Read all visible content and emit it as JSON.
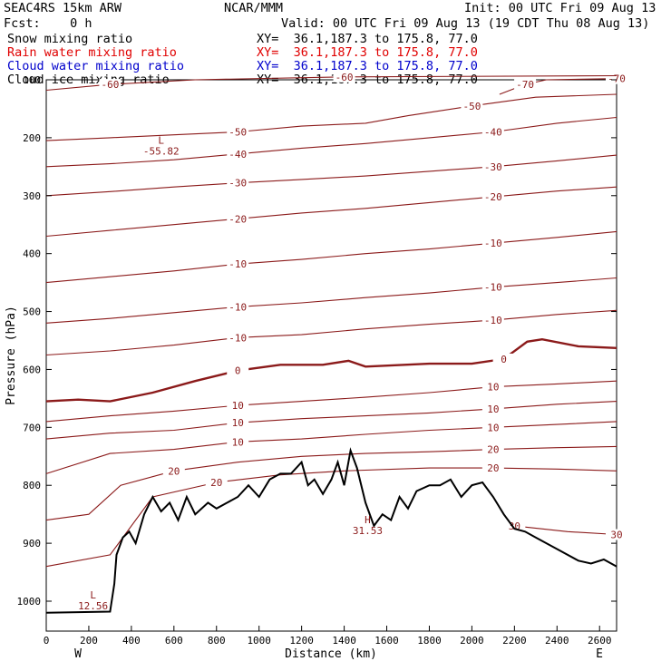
{
  "header": {
    "model": "SEAC4RS 15km ARW",
    "org": "NCAR/MMM",
    "init": "Init: 00 UTC Fri 09 Aug 13",
    "fcst": "Fcst:    0 h",
    "valid": "Valid: 00 UTC Fri 09 Aug 13 (19 CDT Thu 08 Aug 13)",
    "fields": [
      {
        "name": "Snow mixing ratio",
        "xy": "XY=  36.1,187.3 to 175.8, 77.0",
        "color": "#000000"
      },
      {
        "name": "Rain water mixing ratio",
        "xy": "XY=  36.1,187.3 to 175.8, 77.0",
        "color": "#e00000"
      },
      {
        "name": "Cloud water mixing ratio",
        "xy": "XY=  36.1,187.3 to 175.8, 77.0",
        "color": "#0000cc"
      },
      {
        "name": "Cloud ice mixing ratio",
        "xy": "XY=  36.1,187.3 to 175.8, 77.0",
        "color": "#000000"
      }
    ]
  },
  "chart_data": {
    "type": "line",
    "xlabel": "Distance (km)",
    "ylabel": "Pressure (hPa)",
    "xlim": [
      0,
      2680
    ],
    "ylim": [
      1050,
      100
    ],
    "x_ticks": [
      0,
      200,
      400,
      600,
      800,
      1000,
      1200,
      1400,
      1600,
      1800,
      2000,
      2200,
      2400,
      2600
    ],
    "y_ticks": [
      100,
      200,
      300,
      400,
      500,
      600,
      700,
      800,
      900,
      1000
    ],
    "end_labels": {
      "left": "W",
      "right": "E"
    },
    "contour_color": "#8b1a1a",
    "terrain_color": "#000000",
    "temperature_contours": [
      {
        "level": -70,
        "points": [
          [
            2130,
            125
          ],
          [
            2250,
            108
          ],
          [
            2350,
            100
          ],
          [
            2680,
            98
          ]
        ]
      },
      {
        "level": -60,
        "points": [
          [
            0,
            118
          ],
          [
            300,
            108
          ],
          [
            700,
            100
          ],
          [
            1400,
            95
          ],
          [
            2680,
            93
          ]
        ]
      },
      {
        "level": -50,
        "points": [
          [
            0,
            205
          ],
          [
            300,
            200
          ],
          [
            600,
            195
          ],
          [
            900,
            190
          ],
          [
            1200,
            180
          ],
          [
            1500,
            175
          ],
          [
            1700,
            162
          ],
          [
            2000,
            145
          ],
          [
            2300,
            130
          ],
          [
            2680,
            125
          ]
        ]
      },
      {
        "level": -40,
        "points": [
          [
            0,
            250
          ],
          [
            300,
            245
          ],
          [
            600,
            238
          ],
          [
            900,
            228
          ],
          [
            1200,
            218
          ],
          [
            1500,
            210
          ],
          [
            1800,
            200
          ],
          [
            2100,
            190
          ],
          [
            2400,
            175
          ],
          [
            2680,
            165
          ]
        ]
      },
      {
        "level": -30,
        "points": [
          [
            0,
            300
          ],
          [
            300,
            293
          ],
          [
            600,
            285
          ],
          [
            900,
            278
          ],
          [
            1200,
            272
          ],
          [
            1500,
            266
          ],
          [
            1800,
            258
          ],
          [
            2100,
            250
          ],
          [
            2400,
            240
          ],
          [
            2680,
            230
          ]
        ]
      },
      {
        "level": -20,
        "points": [
          [
            0,
            370
          ],
          [
            300,
            360
          ],
          [
            600,
            350
          ],
          [
            900,
            340
          ],
          [
            1200,
            330
          ],
          [
            1500,
            322
          ],
          [
            1800,
            312
          ],
          [
            2100,
            302
          ],
          [
            2400,
            292
          ],
          [
            2680,
            285
          ]
        ]
      },
      {
        "level": -10,
        "points": [
          [
            0,
            450
          ],
          [
            300,
            440
          ],
          [
            600,
            430
          ],
          [
            900,
            418
          ],
          [
            1200,
            410
          ],
          [
            1500,
            400
          ],
          [
            1800,
            392
          ],
          [
            2100,
            382
          ],
          [
            2400,
            372
          ],
          [
            2680,
            362
          ]
        ]
      },
      {
        "level": -10,
        "points": [
          [
            0,
            520
          ],
          [
            300,
            512
          ],
          [
            600,
            502
          ],
          [
            900,
            492
          ],
          [
            1200,
            485
          ],
          [
            1500,
            476
          ],
          [
            1800,
            468
          ],
          [
            2100,
            458
          ],
          [
            2400,
            450
          ],
          [
            2680,
            442
          ]
        ]
      },
      {
        "level": -10,
        "points": [
          [
            0,
            575
          ],
          [
            300,
            568
          ],
          [
            600,
            558
          ],
          [
            900,
            545
          ],
          [
            1200,
            540
          ],
          [
            1500,
            530
          ],
          [
            1800,
            522
          ],
          [
            2100,
            515
          ],
          [
            2400,
            505
          ],
          [
            2680,
            498
          ]
        ]
      },
      {
        "level": 0,
        "points": [
          [
            0,
            655
          ],
          [
            150,
            652
          ],
          [
            300,
            655
          ],
          [
            500,
            640
          ],
          [
            700,
            620
          ],
          [
            900,
            602
          ],
          [
            1100,
            592
          ],
          [
            1300,
            592
          ],
          [
            1420,
            585
          ],
          [
            1500,
            595
          ],
          [
            1800,
            590
          ],
          [
            2000,
            590
          ],
          [
            2150,
            582
          ],
          [
            2260,
            552
          ],
          [
            2330,
            548
          ],
          [
            2500,
            560
          ],
          [
            2680,
            563
          ]
        ]
      },
      {
        "level": 10,
        "points": [
          [
            0,
            690
          ],
          [
            300,
            680
          ],
          [
            600,
            672
          ],
          [
            900,
            662
          ],
          [
            1200,
            655
          ],
          [
            1500,
            648
          ],
          [
            1800,
            640
          ],
          [
            2100,
            630
          ],
          [
            2400,
            625
          ],
          [
            2680,
            620
          ]
        ]
      },
      {
        "level": 10,
        "points": [
          [
            0,
            720
          ],
          [
            300,
            710
          ],
          [
            600,
            705
          ],
          [
            900,
            692
          ],
          [
            1200,
            685
          ],
          [
            1500,
            680
          ],
          [
            1800,
            675
          ],
          [
            2100,
            668
          ],
          [
            2400,
            660
          ],
          [
            2680,
            655
          ]
        ]
      },
      {
        "level": 10,
        "points": [
          [
            0,
            780
          ],
          [
            300,
            745
          ],
          [
            600,
            738
          ],
          [
            900,
            725
          ],
          [
            1200,
            720
          ],
          [
            1500,
            712
          ],
          [
            1800,
            705
          ],
          [
            2100,
            700
          ],
          [
            2400,
            695
          ],
          [
            2680,
            690
          ]
        ]
      },
      {
        "level": 20,
        "points": [
          [
            0,
            860
          ],
          [
            200,
            850
          ],
          [
            350,
            800
          ],
          [
            600,
            775
          ],
          [
            900,
            760
          ],
          [
            1200,
            750
          ],
          [
            1500,
            745
          ],
          [
            1800,
            742
          ],
          [
            2100,
            738
          ],
          [
            2400,
            735
          ],
          [
            2680,
            733
          ]
        ]
      },
      {
        "level": 20,
        "points": [
          [
            0,
            940
          ],
          [
            300,
            920
          ],
          [
            500,
            820
          ],
          [
            800,
            795
          ],
          [
            1100,
            782
          ],
          [
            1400,
            775
          ],
          [
            1800,
            770
          ],
          [
            2100,
            770
          ],
          [
            2400,
            772
          ],
          [
            2680,
            775
          ]
        ]
      },
      {
        "level": 30,
        "points": [
          [
            2200,
            870
          ],
          [
            2450,
            880
          ],
          [
            2680,
            885
          ]
        ]
      }
    ],
    "annotations": [
      {
        "label": "L",
        "value": "-55.82",
        "x": 540,
        "y": 210
      },
      {
        "label": "L",
        "value": "12.56",
        "x": 220,
        "y": 995
      },
      {
        "label": "H",
        "value": "31.53",
        "x": 1510,
        "y": 865
      }
    ],
    "terrain": [
      [
        0,
        1020
      ],
      [
        300,
        1018
      ],
      [
        320,
        970
      ],
      [
        330,
        920
      ],
      [
        360,
        890
      ],
      [
        390,
        880
      ],
      [
        420,
        900
      ],
      [
        460,
        850
      ],
      [
        500,
        820
      ],
      [
        540,
        845
      ],
      [
        580,
        830
      ],
      [
        620,
        860
      ],
      [
        660,
        820
      ],
      [
        700,
        850
      ],
      [
        760,
        830
      ],
      [
        800,
        840
      ],
      [
        850,
        830
      ],
      [
        900,
        820
      ],
      [
        950,
        800
      ],
      [
        1000,
        820
      ],
      [
        1050,
        790
      ],
      [
        1100,
        780
      ],
      [
        1150,
        780
      ],
      [
        1200,
        760
      ],
      [
        1230,
        800
      ],
      [
        1260,
        790
      ],
      [
        1300,
        815
      ],
      [
        1340,
        790
      ],
      [
        1370,
        760
      ],
      [
        1400,
        800
      ],
      [
        1430,
        740
      ],
      [
        1460,
        770
      ],
      [
        1500,
        830
      ],
      [
        1540,
        870
      ],
      [
        1580,
        850
      ],
      [
        1620,
        860
      ],
      [
        1660,
        820
      ],
      [
        1700,
        840
      ],
      [
        1740,
        810
      ],
      [
        1800,
        800
      ],
      [
        1850,
        800
      ],
      [
        1900,
        790
      ],
      [
        1950,
        820
      ],
      [
        2000,
        800
      ],
      [
        2050,
        795
      ],
      [
        2100,
        820
      ],
      [
        2150,
        850
      ],
      [
        2200,
        875
      ],
      [
        2250,
        880
      ],
      [
        2300,
        890
      ],
      [
        2400,
        910
      ],
      [
        2500,
        930
      ],
      [
        2560,
        935
      ],
      [
        2620,
        928
      ],
      [
        2680,
        940
      ]
    ]
  }
}
